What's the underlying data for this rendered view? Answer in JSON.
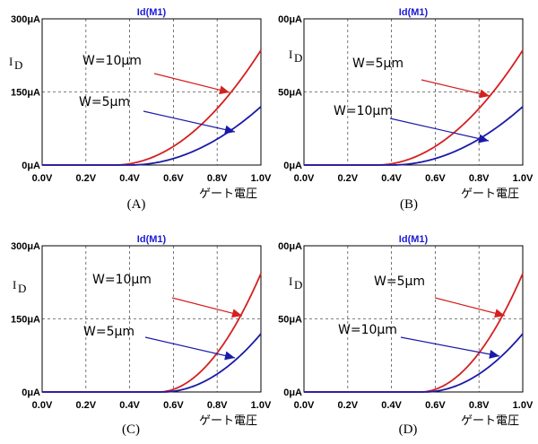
{
  "chart_data": [
    {
      "panel": "(A)",
      "type": "line",
      "title": "Id(M1)",
      "ylabel": "I",
      "ylabel_sub": "D",
      "xlabel": "ゲート電圧",
      "x_ticks": [
        "0.0V",
        "0.2V",
        "0.4V",
        "0.6V",
        "0.8V",
        "1.0V"
      ],
      "y_ticks": [
        "0μA",
        "150μA",
        "300μA"
      ],
      "xlim": [
        0,
        1.0
      ],
      "ylim": [
        0,
        300
      ],
      "series": [
        {
          "name": "W=10μm",
          "label": "W=10μm",
          "color": "#d42020",
          "vth": 0.33,
          "k": 525
        },
        {
          "name": "W=5μm",
          "label": "W=5μm",
          "color": "#1a1aa8",
          "vth": 0.4,
          "k": 333
        }
      ]
    },
    {
      "panel": "(B)",
      "type": "line",
      "title": "Id(M1)",
      "ylabel": "I",
      "ylabel_sub": "D",
      "xlabel": "ゲート電圧",
      "x_ticks": [
        "0.0V",
        "0.2V",
        "0.4V",
        "0.6V",
        "0.8V",
        "1.0V"
      ],
      "y_ticks": [
        "0μA",
        "50μA",
        "00μA"
      ],
      "xlim": [
        0,
        1.0
      ],
      "ylim": [
        0,
        300
      ],
      "series": [
        {
          "name": "W=5μm",
          "label": "W=5μm",
          "color": "#d42020",
          "vth": 0.33,
          "k": 525
        },
        {
          "name": "W=10μm",
          "label": "W=10μm",
          "color": "#1a1aa8",
          "vth": 0.4,
          "k": 333
        }
      ]
    },
    {
      "panel": "(C)",
      "type": "line",
      "title": "Id(M1)",
      "ylabel": "I",
      "ylabel_sub": "D",
      "xlabel": "ゲート電圧",
      "x_ticks": [
        "0.0V",
        "0.2V",
        "0.4V",
        "0.6V",
        "0.8V",
        "1.0V"
      ],
      "y_ticks": [
        "0μA",
        "150μA",
        "300μA"
      ],
      "xlim": [
        0,
        1.0
      ],
      "ylim": [
        0,
        300
      ],
      "series": [
        {
          "name": "W=10μm",
          "label": "W=10μm",
          "color": "#d42020",
          "vth": 0.53,
          "k": 1100
        },
        {
          "name": "W=5μm",
          "label": "W=5μm",
          "color": "#1a1aa8",
          "vth": 0.55,
          "k": 590
        }
      ]
    },
    {
      "panel": "(D)",
      "type": "line",
      "title": "Id(M1)",
      "ylabel": "I",
      "ylabel_sub": "D",
      "xlabel": "ゲート電圧",
      "x_ticks": [
        "0.0V",
        "0.2V",
        "0.4V",
        "0.6V",
        "0.8V",
        "1.0V"
      ],
      "y_ticks": [
        "0μA",
        "50μA",
        "00μA"
      ],
      "xlim": [
        0,
        1.0
      ],
      "ylim": [
        0,
        300
      ],
      "series": [
        {
          "name": "W=5μm",
          "label": "W=5μm",
          "color": "#d42020",
          "vth": 0.53,
          "k": 1100
        },
        {
          "name": "W=10μm",
          "label": "W=10μm",
          "color": "#1a1aa8",
          "vth": 0.55,
          "k": 590
        }
      ]
    }
  ]
}
